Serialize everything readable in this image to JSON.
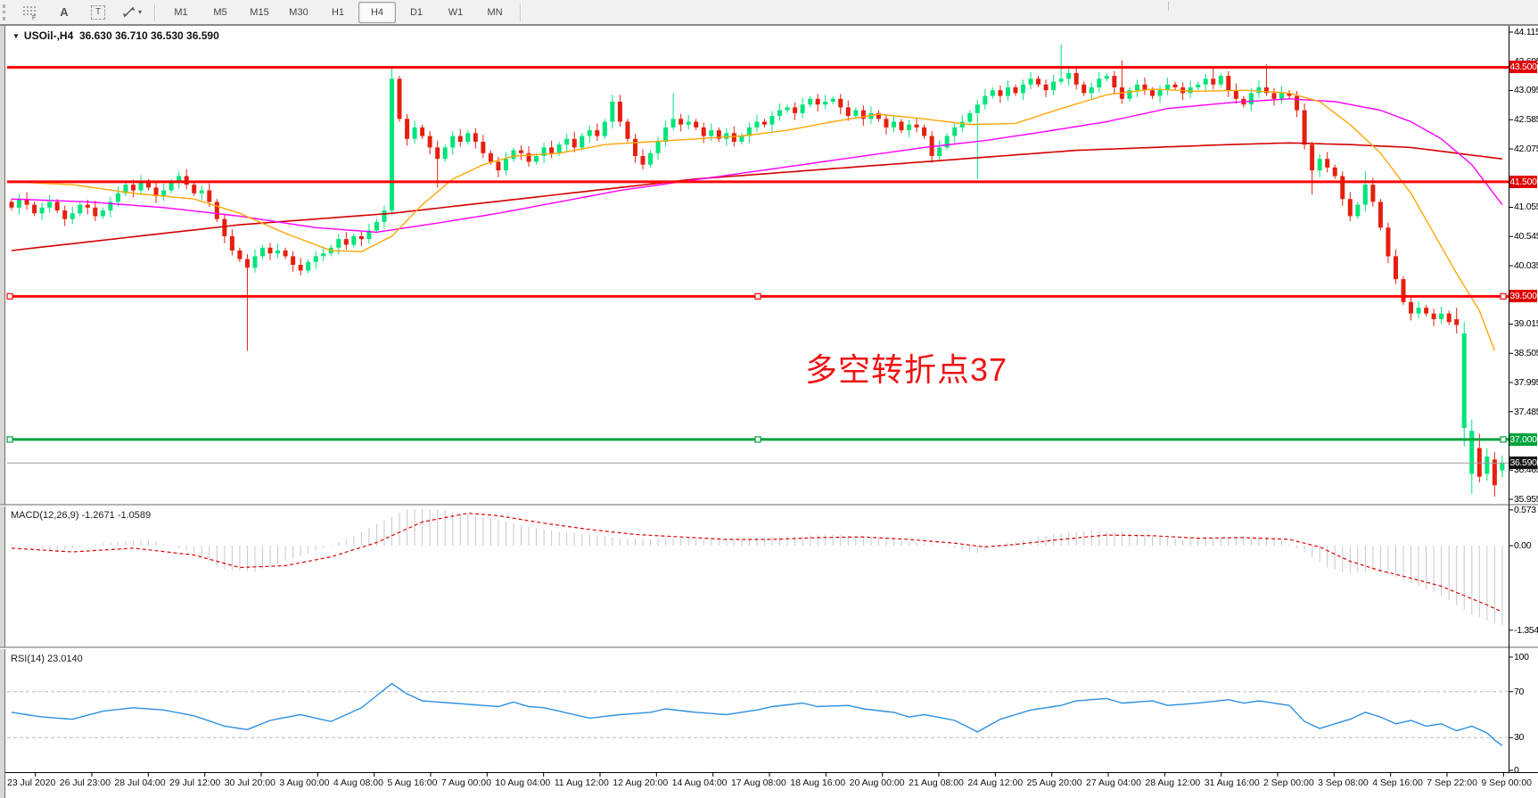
{
  "colors": {
    "bull": "#00e57a",
    "bear": "#e5200e",
    "level_red": "#fe0606",
    "level_green": "#00a33c",
    "price_line": "#9a9a9a",
    "ma_orange": "#ffa608",
    "ma_magenta": "#ff00ff",
    "ma_red": "#d40000",
    "macd_bar": "#c8c8c8",
    "macd_signal": "#e00000",
    "rsi_line": "#2f8fe0",
    "grid_dash": "#bdbdbd",
    "badge_black": "#141414"
  },
  "toolbar": {
    "tools": [
      {
        "name": "symbols-grid-icon",
        "label": "F"
      },
      {
        "name": "text-label-icon",
        "label": "A"
      },
      {
        "name": "text-box-icon",
        "label": "T"
      },
      {
        "name": "line-studies-icon",
        "label": "▾"
      }
    ],
    "timeframes": [
      "M1",
      "M5",
      "M15",
      "M30",
      "H1",
      "H4",
      "D1",
      "W1",
      "MN"
    ],
    "active_timeframe": "H4"
  },
  "chart": {
    "title": "USOil-,H4",
    "ohlc_text": "36.630 36.710 36.530 36.590",
    "dropdown_glyph": "▼",
    "annotation": {
      "text": "多空转折点37",
      "color": "#ee1313"
    }
  },
  "price_axis": {
    "ticks": [
      "44.115",
      "43.605",
      "43.095",
      "42.585",
      "42.075",
      "41.055",
      "40.545",
      "40.035",
      "39.015",
      "38.505",
      "37.995",
      "37.485",
      "36.465",
      "35.955"
    ],
    "badges": [
      {
        "label": "43.500",
        "price": 43.5,
        "bg": "#e00000"
      },
      {
        "label": "41.500",
        "price": 41.5,
        "bg": "#e00000"
      },
      {
        "label": "39.500",
        "price": 39.5,
        "bg": "#e00000"
      },
      {
        "label": "37.000",
        "price": 37.0,
        "bg": "#00a33c"
      },
      {
        "label": "36.590",
        "price": 36.59,
        "bg": "#141414"
      }
    ]
  },
  "levels": [
    {
      "price": 43.5,
      "color": "#fe0606",
      "width": 3,
      "handles": false
    },
    {
      "price": 41.5,
      "color": "#fe0606",
      "width": 3,
      "handles": false
    },
    {
      "price": 39.5,
      "color": "#fe0606",
      "width": 3,
      "handles": true
    },
    {
      "price": 37.0,
      "color": "#00a33c",
      "width": 3,
      "handles": true
    },
    {
      "price": 36.59,
      "color": "#9a9a9a",
      "width": 1,
      "handles": false
    }
  ],
  "chart_data": {
    "type": "candlestick",
    "symbol": "USOil",
    "period": "H4",
    "candle_count": 197,
    "closes": [
      41.05,
      41.2,
      41.1,
      40.95,
      41.05,
      41.15,
      41.0,
      40.85,
      40.95,
      41.1,
      41.05,
      40.9,
      41.0,
      41.15,
      41.3,
      41.45,
      41.35,
      41.5,
      41.4,
      41.25,
      41.35,
      41.5,
      41.6,
      41.45,
      41.3,
      41.35,
      41.15,
      40.85,
      40.55,
      40.3,
      40.15,
      40.0,
      40.2,
      40.35,
      40.25,
      40.3,
      40.2,
      40.05,
      39.95,
      40.1,
      40.2,
      40.25,
      40.35,
      40.5,
      40.4,
      40.55,
      40.5,
      40.65,
      40.8,
      41.0,
      43.3,
      42.6,
      42.25,
      42.45,
      42.3,
      42.1,
      41.9,
      42.1,
      42.3,
      42.2,
      42.35,
      42.2,
      42.0,
      41.85,
      41.7,
      41.9,
      42.05,
      42.0,
      41.85,
      41.95,
      42.1,
      42.0,
      42.15,
      42.25,
      42.1,
      42.3,
      42.4,
      42.3,
      42.55,
      42.9,
      42.55,
      42.25,
      41.95,
      41.8,
      42.0,
      42.2,
      42.45,
      42.6,
      42.5,
      42.55,
      42.45,
      42.3,
      42.4,
      42.25,
      42.35,
      42.2,
      42.3,
      42.45,
      42.55,
      42.5,
      42.65,
      42.75,
      42.8,
      42.7,
      42.85,
      42.95,
      42.85,
      42.9,
      42.95,
      42.8,
      42.65,
      42.75,
      42.6,
      42.7,
      42.6,
      42.45,
      42.55,
      42.4,
      42.5,
      42.45,
      42.3,
      41.95,
      42.1,
      42.3,
      42.45,
      42.55,
      42.7,
      42.85,
      43.0,
      43.1,
      43.0,
      43.15,
      43.05,
      43.2,
      43.3,
      43.2,
      43.1,
      43.25,
      43.3,
      43.4,
      43.2,
      43.05,
      43.15,
      43.3,
      43.35,
      43.15,
      42.95,
      43.1,
      43.2,
      43.1,
      43.0,
      43.1,
      43.2,
      43.15,
      43.05,
      43.15,
      43.2,
      43.3,
      43.2,
      43.35,
      43.1,
      42.95,
      42.85,
      43.05,
      43.15,
      43.05,
      42.95,
      43.05,
      43.0,
      42.75,
      42.15,
      41.7,
      41.9,
      41.75,
      41.6,
      41.2,
      40.9,
      41.1,
      41.45,
      41.15,
      40.7,
      40.2,
      39.8,
      39.4,
      39.2,
      39.3,
      39.2,
      39.1,
      39.2,
      39.05
    ],
    "overrides": {
      "31": {
        "l": 38.55
      },
      "50": {
        "h": 43.52
      },
      "56": {
        "l": 41.4
      },
      "79": {
        "h": 43.02
      },
      "87": {
        "h": 43.05
      },
      "127": {
        "l": 41.55
      },
      "138": {
        "h": 43.9
      },
      "146": {
        "h": 43.62
      },
      "158": {
        "h": 43.5
      },
      "165": {
        "h": 43.55
      },
      "171": {
        "l": 41.28
      },
      "178": {
        "h": 41.68
      },
      "190": {
        "o": 39.1,
        "h": 39.3,
        "l": 38.85,
        "c": 39.0
      },
      "191": {
        "o": 37.2,
        "h": 39.05,
        "l": 36.88,
        "c": 38.85
      },
      "192": {
        "o": 36.4,
        "h": 37.35,
        "l": 36.05,
        "c": 37.15
      },
      "193": {
        "o": 36.85,
        "h": 37.1,
        "l": 36.25,
        "c": 36.35
      },
      "194": {
        "o": 36.4,
        "h": 36.85,
        "l": 36.28,
        "c": 36.7
      },
      "195": {
        "o": 36.65,
        "h": 36.78,
        "l": 36.0,
        "c": 36.2
      },
      "196": {
        "o": 36.46,
        "h": 36.72,
        "l": 36.34,
        "c": 36.59
      }
    },
    "moving_averages": {
      "orange": [
        [
          0,
          41.5
        ],
        [
          8,
          41.45
        ],
        [
          16,
          41.3
        ],
        [
          24,
          41.2
        ],
        [
          30,
          40.95
        ],
        [
          36,
          40.6
        ],
        [
          42,
          40.3
        ],
        [
          46,
          40.28
        ],
        [
          50,
          40.55
        ],
        [
          54,
          41.1
        ],
        [
          58,
          41.55
        ],
        [
          62,
          41.8
        ],
        [
          66,
          41.95
        ],
        [
          72,
          42.0
        ],
        [
          78,
          42.15
        ],
        [
          84,
          42.2
        ],
        [
          90,
          42.25
        ],
        [
          96,
          42.3
        ],
        [
          102,
          42.4
        ],
        [
          108,
          42.55
        ],
        [
          114,
          42.68
        ],
        [
          120,
          42.6
        ],
        [
          126,
          42.5
        ],
        [
          132,
          42.52
        ],
        [
          138,
          42.78
        ],
        [
          144,
          43.02
        ],
        [
          150,
          43.12
        ],
        [
          156,
          43.08
        ],
        [
          162,
          43.1
        ],
        [
          168,
          43.05
        ],
        [
          172,
          42.9
        ],
        [
          176,
          42.5
        ],
        [
          180,
          42.0
        ],
        [
          184,
          41.3
        ],
        [
          187,
          40.6
        ],
        [
          190,
          39.9
        ],
        [
          193,
          39.25
        ],
        [
          195,
          38.55
        ]
      ],
      "magenta": [
        [
          0,
          41.2
        ],
        [
          10,
          41.15
        ],
        [
          20,
          41.05
        ],
        [
          30,
          40.9
        ],
        [
          40,
          40.7
        ],
        [
          48,
          40.62
        ],
        [
          56,
          40.78
        ],
        [
          64,
          40.95
        ],
        [
          72,
          41.15
        ],
        [
          80,
          41.35
        ],
        [
          88,
          41.5
        ],
        [
          96,
          41.65
        ],
        [
          104,
          41.8
        ],
        [
          112,
          41.95
        ],
        [
          120,
          42.1
        ],
        [
          128,
          42.22
        ],
        [
          136,
          42.38
        ],
        [
          144,
          42.55
        ],
        [
          152,
          42.78
        ],
        [
          160,
          42.88
        ],
        [
          168,
          42.95
        ],
        [
          174,
          42.9
        ],
        [
          180,
          42.75
        ],
        [
          184,
          42.55
        ],
        [
          188,
          42.25
        ],
        [
          192,
          41.8
        ],
        [
          196,
          41.1
        ]
      ],
      "red": [
        [
          0,
          40.3
        ],
        [
          10,
          40.45
        ],
        [
          20,
          40.6
        ],
        [
          30,
          40.75
        ],
        [
          40,
          40.85
        ],
        [
          50,
          40.95
        ],
        [
          60,
          41.1
        ],
        [
          70,
          41.25
        ],
        [
          80,
          41.4
        ],
        [
          90,
          41.55
        ],
        [
          100,
          41.65
        ],
        [
          110,
          41.75
        ],
        [
          120,
          41.85
        ],
        [
          130,
          41.95
        ],
        [
          140,
          42.05
        ],
        [
          150,
          42.1
        ],
        [
          160,
          42.15
        ],
        [
          168,
          42.18
        ],
        [
          176,
          42.15
        ],
        [
          184,
          42.1
        ],
        [
          190,
          42.0
        ],
        [
          196,
          41.9
        ]
      ]
    }
  },
  "macd": {
    "label": "MACD(12,26,9) -1.2671 -1.0589",
    "axis": [
      {
        "v": 0.573,
        "label": "0.573"
      },
      {
        "v": 0,
        "label": "0.00"
      },
      {
        "v": -1.3548,
        "label": "-1.3548"
      }
    ],
    "histogram": [
      [
        0,
        0.02
      ],
      [
        6,
        -0.08
      ],
      [
        12,
        0.04
      ],
      [
        18,
        0.1
      ],
      [
        24,
        -0.12
      ],
      [
        28,
        -0.38
      ],
      [
        32,
        -0.42
      ],
      [
        36,
        -0.25
      ],
      [
        40,
        -0.08
      ],
      [
        44,
        0.1
      ],
      [
        48,
        0.35
      ],
      [
        52,
        0.58
      ],
      [
        56,
        0.58
      ],
      [
        60,
        0.5
      ],
      [
        64,
        0.42
      ],
      [
        68,
        0.3
      ],
      [
        72,
        0.22
      ],
      [
        76,
        0.18
      ],
      [
        80,
        0.12
      ],
      [
        84,
        0.1
      ],
      [
        88,
        0.12
      ],
      [
        92,
        0.1
      ],
      [
        96,
        0.1
      ],
      [
        100,
        0.14
      ],
      [
        104,
        0.16
      ],
      [
        108,
        0.18
      ],
      [
        112,
        0.14
      ],
      [
        116,
        0.1
      ],
      [
        120,
        0.04
      ],
      [
        124,
        -0.04
      ],
      [
        127,
        -0.12
      ],
      [
        130,
        0.02
      ],
      [
        134,
        0.12
      ],
      [
        138,
        0.2
      ],
      [
        142,
        0.24
      ],
      [
        146,
        0.22
      ],
      [
        150,
        0.15
      ],
      [
        154,
        0.1
      ],
      [
        158,
        0.12
      ],
      [
        162,
        0.15
      ],
      [
        166,
        0.14
      ],
      [
        170,
        -0.1
      ],
      [
        173,
        -0.35
      ],
      [
        176,
        -0.45
      ],
      [
        179,
        -0.4
      ],
      [
        182,
        -0.5
      ],
      [
        185,
        -0.65
      ],
      [
        188,
        -0.8
      ],
      [
        190,
        -0.95
      ],
      [
        192,
        -1.1
      ],
      [
        194,
        -1.2
      ],
      [
        196,
        -1.27
      ]
    ],
    "signal": [
      [
        0,
        -0.04
      ],
      [
        8,
        -0.1
      ],
      [
        16,
        -0.04
      ],
      [
        24,
        -0.15
      ],
      [
        30,
        -0.35
      ],
      [
        36,
        -0.32
      ],
      [
        42,
        -0.18
      ],
      [
        48,
        0.05
      ],
      [
        54,
        0.38
      ],
      [
        60,
        0.52
      ],
      [
        64,
        0.48
      ],
      [
        70,
        0.36
      ],
      [
        76,
        0.26
      ],
      [
        82,
        0.18
      ],
      [
        88,
        0.14
      ],
      [
        94,
        0.1
      ],
      [
        100,
        0.1
      ],
      [
        106,
        0.13
      ],
      [
        112,
        0.14
      ],
      [
        118,
        0.1
      ],
      [
        124,
        0.04
      ],
      [
        128,
        -0.02
      ],
      [
        132,
        0.02
      ],
      [
        138,
        0.1
      ],
      [
        144,
        0.17
      ],
      [
        150,
        0.16
      ],
      [
        156,
        0.12
      ],
      [
        162,
        0.13
      ],
      [
        168,
        0.1
      ],
      [
        172,
        -0.02
      ],
      [
        176,
        -0.25
      ],
      [
        180,
        -0.4
      ],
      [
        184,
        -0.52
      ],
      [
        188,
        -0.65
      ],
      [
        191,
        -0.8
      ],
      [
        194,
        -0.95
      ],
      [
        196,
        -1.06
      ]
    ]
  },
  "rsi": {
    "label": "RSI(14) 23.0140",
    "axis": [
      {
        "v": 100,
        "label": "100"
      },
      {
        "v": 70,
        "label": "70"
      },
      {
        "v": 30,
        "label": "30"
      },
      {
        "v": 0,
        "label": "0"
      }
    ],
    "guides": [
      70,
      30
    ],
    "line": [
      [
        0,
        52
      ],
      [
        4,
        48
      ],
      [
        8,
        46
      ],
      [
        12,
        53
      ],
      [
        16,
        56
      ],
      [
        20,
        54
      ],
      [
        24,
        49
      ],
      [
        28,
        40
      ],
      [
        31,
        37
      ],
      [
        34,
        45
      ],
      [
        38,
        50
      ],
      [
        42,
        44
      ],
      [
        46,
        56
      ],
      [
        50,
        77
      ],
      [
        52,
        68
      ],
      [
        54,
        62
      ],
      [
        58,
        60
      ],
      [
        60,
        59
      ],
      [
        64,
        57
      ],
      [
        66,
        61
      ],
      [
        68,
        57
      ],
      [
        70,
        56
      ],
      [
        72,
        53
      ],
      [
        76,
        47
      ],
      [
        80,
        50
      ],
      [
        84,
        52
      ],
      [
        86,
        55
      ],
      [
        90,
        52
      ],
      [
        94,
        50
      ],
      [
        98,
        54
      ],
      [
        100,
        57
      ],
      [
        104,
        60
      ],
      [
        106,
        57
      ],
      [
        110,
        58
      ],
      [
        112,
        55
      ],
      [
        116,
        52
      ],
      [
        118,
        48
      ],
      [
        120,
        50
      ],
      [
        124,
        45
      ],
      [
        127,
        35
      ],
      [
        130,
        46
      ],
      [
        134,
        54
      ],
      [
        138,
        58
      ],
      [
        140,
        62
      ],
      [
        144,
        64
      ],
      [
        146,
        60
      ],
      [
        150,
        62
      ],
      [
        152,
        58
      ],
      [
        156,
        60
      ],
      [
        160,
        63
      ],
      [
        162,
        60
      ],
      [
        164,
        62
      ],
      [
        168,
        58
      ],
      [
        170,
        44
      ],
      [
        172,
        38
      ],
      [
        174,
        42
      ],
      [
        176,
        46
      ],
      [
        178,
        52
      ],
      [
        180,
        48
      ],
      [
        182,
        42
      ],
      [
        184,
        45
      ],
      [
        186,
        40
      ],
      [
        188,
        42
      ],
      [
        190,
        36
      ],
      [
        192,
        40
      ],
      [
        194,
        34
      ],
      [
        195,
        28
      ],
      [
        196,
        23
      ]
    ]
  },
  "date_axis": {
    "labels": [
      "23 Jul 2020",
      "26 Jul 23:00",
      "28 Jul 04:00",
      "29 Jul 12:00",
      "30 Jul 20:00",
      "3 Aug 00:00",
      "4 Aug 08:00",
      "5 Aug 16:00",
      "7 Aug 00:00",
      "10 Aug 04:00",
      "11 Aug 12:00",
      "12 Aug 20:00",
      "14 Aug 04:00",
      "17 Aug 08:00",
      "18 Aug 16:00",
      "20 Aug 00:00",
      "21 Aug 08:00",
      "24 Aug 12:00",
      "25 Aug 20:00",
      "27 Aug 04:00",
      "28 Aug 12:00",
      "31 Aug 16:00",
      "2 Sep 00:00",
      "3 Sep 08:00",
      "4 Sep 16:00",
      "7 Sep 22:00",
      "9 Sep 00:00"
    ]
  }
}
